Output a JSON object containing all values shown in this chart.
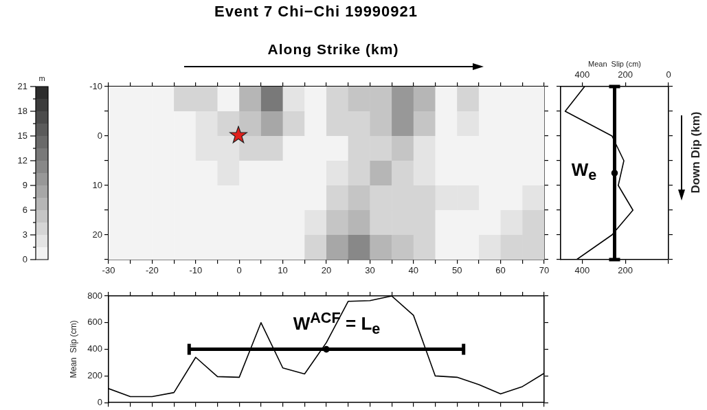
{
  "chart_data": [
    {
      "type": "heatmap",
      "title": "Event 7 Chi−Chi 19990921",
      "xlabel": "Along Strike (km)",
      "clabel": "m",
      "x": [
        -27.5,
        -22.5,
        -17.5,
        -12.5,
        -7.5,
        -2.5,
        2.5,
        7.5,
        12.5,
        17.5,
        22.5,
        27.5,
        32.5,
        37.5,
        42.5,
        47.5,
        52.5,
        57.5,
        62.5,
        67.5
      ],
      "y": [
        -7.5,
        -2.5,
        2.5,
        7.5,
        12.5,
        17.5,
        22.5
      ],
      "cells": [
        [
          0.5,
          0.5,
          0.5,
          4,
          3,
          1,
          6,
          12,
          2,
          0.5,
          3,
          5,
          5,
          9,
          6,
          1,
          3,
          0.5,
          0.5,
          0.5
        ],
        [
          0.5,
          0.5,
          0.5,
          1,
          2,
          3,
          5,
          8,
          3,
          1,
          4,
          4,
          5,
          10,
          5,
          1,
          2,
          0.5,
          0.5,
          0.5
        ],
        [
          1,
          0.5,
          0.5,
          0.5,
          2,
          2.5,
          3,
          3,
          1,
          0.5,
          0.5,
          3,
          4,
          5,
          2,
          0.5,
          0.5,
          0.5,
          0.5,
          0.5
        ],
        [
          0.5,
          0.5,
          0.5,
          0.5,
          1,
          1.5,
          1,
          0.5,
          0.5,
          0.5,
          2,
          4,
          6,
          4,
          2,
          1,
          1,
          0.5,
          0.5,
          1
        ],
        [
          0.5,
          0.5,
          0.5,
          0.5,
          0.5,
          1,
          0.5,
          0.5,
          0.5,
          0.5,
          4,
          5,
          3,
          4,
          3,
          1.5,
          1.5,
          0.5,
          0.5,
          2
        ],
        [
          0.5,
          0.5,
          0.5,
          0.5,
          0.5,
          0.5,
          0.5,
          0.5,
          0.5,
          2,
          5,
          6,
          4,
          3,
          3,
          1,
          1,
          1,
          2,
          3
        ],
        [
          1,
          0.5,
          0.5,
          0.5,
          0.5,
          0.5,
          0.5,
          0.5,
          0.5,
          4,
          8,
          11,
          7,
          5,
          3,
          1,
          1,
          1.5,
          3,
          4
        ]
      ],
      "clim": [
        0,
        21
      ],
      "cticks": [
        0,
        {
          "value": 1.5,
          "label": null
        },
        3,
        {
          "value": 4.5,
          "label": null
        },
        6,
        {
          "value": 7.5,
          "label": null
        },
        9,
        {
          "value": 10.5,
          "label": null
        },
        12,
        {
          "value": 13.5,
          "label": null
        },
        15,
        {
          "value": 16.5,
          "label": null
        },
        18,
        {
          "value": 19.5,
          "label": null
        },
        21
      ],
      "xlim": [
        -30,
        70
      ],
      "xticks": [
        -30,
        {
          "value": -25,
          "label": null
        },
        -20,
        {
          "value": -15,
          "label": null
        },
        -10,
        {
          "value": -5,
          "label": null
        },
        0,
        {
          "value": 5,
          "label": null
        },
        10,
        {
          "value": 15,
          "label": null
        },
        20,
        {
          "value": 25,
          "label": null
        },
        30,
        {
          "value": 35,
          "label": null
        },
        40,
        {
          "value": 45,
          "label": null
        },
        50,
        {
          "value": 55,
          "label": null
        },
        60,
        {
          "value": 65,
          "label": null
        },
        70
      ],
      "ylim": [
        25,
        -10
      ],
      "yticks": [
        -10,
        {
          "value": -5,
          "label": null
        },
        0,
        {
          "value": 5,
          "label": null
        },
        10,
        {
          "value": 15,
          "label": null
        },
        20,
        {
          "value": 25,
          "label": null
        }
      ]
    },
    {
      "type": "line",
      "x2label": "Mean  Slip (cm)",
      "ylabel": "Down Dip (km)",
      "xlim": [
        500,
        0
      ],
      "xticks": [
        400,
        200,
        {
          "value": 0,
          "label": null
        }
      ],
      "x2lim": [
        500,
        0
      ],
      "x2ticks": [
        400,
        200,
        0
      ],
      "ylim": [
        25,
        -10
      ],
      "yticks": [
        {
          "value": -10,
          "label": null
        },
        {
          "value": -5,
          "label": null
        },
        {
          "value": 0,
          "label": null
        },
        {
          "value": 5,
          "label": null
        },
        {
          "value": 10,
          "label": null
        },
        {
          "value": 15,
          "label": null
        },
        {
          "value": 20,
          "label": null
        },
        {
          "value": 25,
          "label": null
        }
      ],
      "tick_labels": "x",
      "annotations": [
        "W$_{e}$"
      ],
      "series": [
        {
          "color": "#000000",
          "x": [
            389,
            479,
            262,
            207,
            233,
            165,
            262,
            426
          ],
          "values": [
            -10,
            -5,
            0,
            5,
            10,
            15,
            20,
            25
          ]
        },
        {
          "type": "scatter",
          "color": "#000000",
          "x": [
            250
          ],
          "values": [
            7.5
          ],
          "errors": [
            [
              -10,
              25
            ]
          ]
        }
      ]
    },
    {
      "type": "line",
      "ylabel": "Mean  Slip (cm)",
      "x": [
        -30,
        -25,
        -20,
        -15,
        -10,
        -5,
        0,
        5,
        10,
        15,
        20,
        25,
        30,
        35,
        40,
        45,
        50,
        55,
        60,
        65,
        70
      ],
      "xlim": [
        -30,
        70
      ],
      "xticks": [
        -30,
        -25,
        -20,
        -15,
        -10,
        -5,
        0,
        5,
        10,
        15,
        20,
        25,
        30,
        35,
        40,
        45,
        50,
        55,
        60,
        65,
        70
      ],
      "ylim": [
        0,
        800
      ],
      "yticks": [
        0,
        200,
        400,
        600,
        800
      ],
      "tick_labels": "y",
      "annotations": [
        "W$^{ACF}$ = L$_{e}$"
      ],
      "series": [
        {
          "color": "#000000",
          "values": [
            105,
            45,
            45,
            75,
            340,
            195,
            190,
            600,
            260,
            215,
            450,
            760,
            765,
            800,
            655,
            200,
            190,
            135,
            65,
            120,
            220
          ]
        },
        {
          "type": "scatter",
          "color": "#000000",
          "x": [
            20
          ],
          "values": [
            400
          ],
          "xerrors": [
            [
              -11.5,
              51.5
            ]
          ]
        }
      ]
    }
  ]
}
